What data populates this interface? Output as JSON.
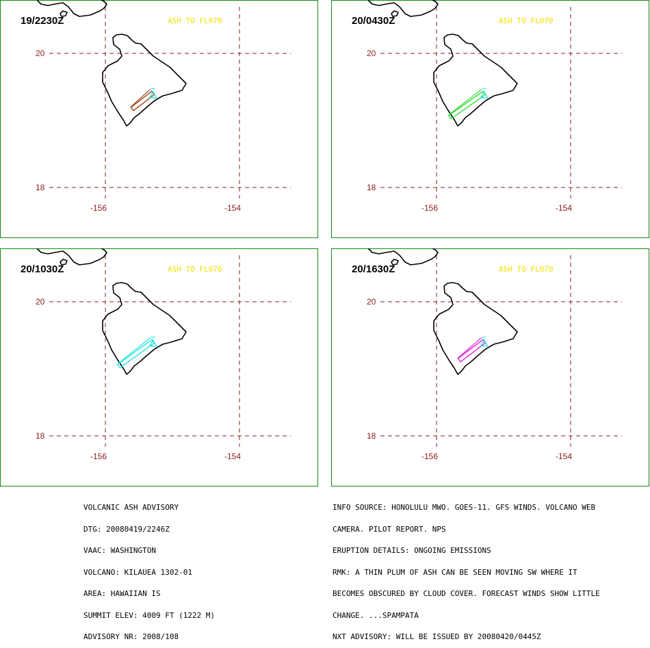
{
  "panels": [
    {
      "time": "19/2230Z",
      "ash_label": "ASH TO FL070",
      "plume_color": "#a04a20",
      "plume": [
        [
          -155.29,
          19.41
        ],
        [
          -155.6,
          19.17
        ]
      ]
    },
    {
      "time": "20/0430Z",
      "ash_label": "ASH TO FL070",
      "plume_color": "#33dd33",
      "plume": [
        [
          -155.29,
          19.41
        ],
        [
          -155.8,
          19.05
        ]
      ]
    },
    {
      "time": "20/1030Z",
      "ash_label": "ASH TO FL070",
      "plume_color": "#22e5e5",
      "plume": [
        [
          -155.29,
          19.41
        ],
        [
          -155.8,
          19.04
        ]
      ]
    },
    {
      "time": "20/1630Z",
      "ash_label": "ASH TO FL070",
      "plume_color": "#dd22dd",
      "plume": [
        [
          -155.29,
          19.41
        ],
        [
          -155.66,
          19.13
        ]
      ]
    }
  ],
  "axes": {
    "lat_ticks": [
      {
        "value": 20,
        "label": "20"
      },
      {
        "value": 18,
        "label": "18"
      }
    ],
    "lon_ticks": [
      {
        "value": -156,
        "label": "-156"
      },
      {
        "value": -154,
        "label": "-154"
      }
    ]
  },
  "volcano": {
    "name": "KILAUEA",
    "lon": -155.29,
    "lat": 19.41,
    "marker_color": "#22e5e5"
  },
  "advisory_left": [
    "VOLCANIC ASH ADVISORY",
    "DTG: 20080419/2246Z",
    "VAAC: WASHINGTON",
    "VOLCANO: KILAUEA 1302-01",
    "AREA: HAWAIIAN IS",
    "SUMMIT ELEV: 4009 FT (1222 M)",
    "ADVISORY NR: 2008/108"
  ],
  "advisory_right": [
    "INFO SOURCE: HONOLULU MWO. GOES-11. GFS WINDS. VOLCANO WEB",
    "CAMERA. PILOT REPORT. NPS",
    "ERUPTION DETAILS: ONGOING EMISSIONS",
    "RMK: A THIN PLUM OF ASH CAN BE SEEN MOVING SW WHERE IT",
    "BECOMES OBSCURED BY CLOUD COVER. FORECAST WINDS SHOW LITTLE",
    "CHANGE. ...SPAMPATA",
    "NXT ADVISORY: WILL BE ISSUED BY 20080420/0445Z"
  ],
  "colors": {
    "frame": "#118811",
    "grid": "#8b1a1a",
    "coast": "#000000",
    "ash_label": "#f0e000"
  }
}
